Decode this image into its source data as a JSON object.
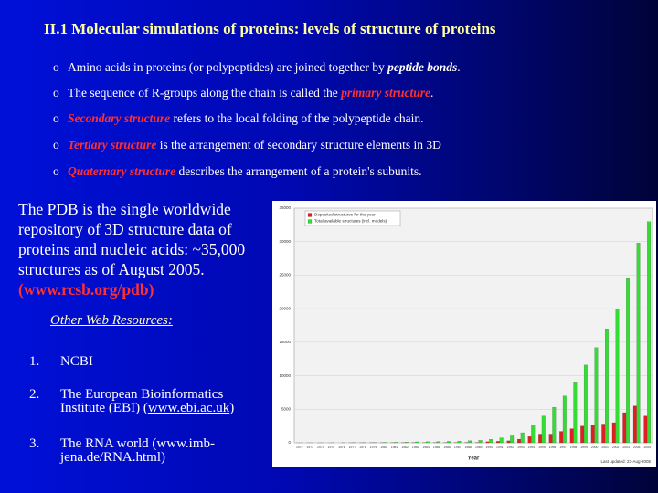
{
  "title": "II.1 Molecular simulations of proteins: levels of structure of proteins",
  "bullets": [
    [
      "Amino acids in proteins (or polypeptides) are joined together by ",
      "peptide bonds",
      "."
    ],
    [
      "The sequence of R-groups along the chain is called the ",
      "primary structure",
      "."
    ],
    [
      "Secondary structure",
      " refers to the local folding of the polypeptide chain."
    ],
    [
      "Tertiary structure",
      " is the arrangement of secondary structure elements in 3D"
    ],
    [
      "Quaternary structure",
      " describes the arrangement of a protein's subunits."
    ]
  ],
  "bullet_marker": "o",
  "pdb_text": [
    "The PDB is the single worldwide repository of 3D structure data of proteins and nucleic acids: ~35,000 structures as of August 2005.",
    "(www.rcsb.org/pdb)"
  ],
  "resources": {
    "heading": "Other Web Resources:",
    "items": [
      {
        "number": "1.",
        "text": [
          "NCBI"
        ]
      },
      {
        "number": "2.",
        "text": [
          "The European Bioinformatics Institute (EBI) (",
          "www.ebi.ac.uk",
          ")"
        ]
      },
      {
        "number": "3.",
        "text": [
          "The RNA world (www.imb-jena.de/RNA.html)"
        ]
      }
    ]
  },
  "chart_data": {
    "type": "bar",
    "categories": [
      "1972",
      "1973",
      "1974",
      "1975",
      "1976",
      "1977",
      "1978",
      "1979",
      "1980",
      "1981",
      "1982",
      "1983",
      "1984",
      "1985",
      "1986",
      "1987",
      "1988",
      "1989",
      "1990",
      "1991",
      "1992",
      "1993",
      "1994",
      "1995",
      "1996",
      "1997",
      "1998",
      "1999",
      "2000",
      "2001",
      "2002",
      "2003",
      "2004",
      "2005"
    ],
    "series": [
      {
        "name": "Deposited structures for the year",
        "color": "#e02020",
        "values": [
          1,
          2,
          3,
          1,
          0,
          10,
          12,
          15,
          19,
          15,
          22,
          34,
          25,
          26,
          20,
          35,
          58,
          55,
          158,
          223,
          290,
          540,
          930,
          1300,
          1300,
          1700,
          2100,
          2500,
          2600,
          2800,
          3000,
          4500,
          5500,
          4000
        ]
      },
      {
        "name": "Total available structures (incl. models)",
        "color": "#33dd33",
        "values": [
          7,
          9,
          12,
          13,
          13,
          23,
          35,
          50,
          69,
          84,
          106,
          140,
          165,
          191,
          211,
          246,
          304,
          359,
          517,
          740,
          1030,
          1500,
          2600,
          4000,
          5300,
          7000,
          9100,
          11600,
          14200,
          17000,
          20000,
          24500,
          29800,
          33000
        ]
      }
    ],
    "xlabel": "Year",
    "note": "Last updated: 23-Aug-2005",
    "ylim": [
      0,
      35000
    ],
    "yticks": [
      0,
      5000,
      10000,
      15000,
      20000,
      25000,
      30000,
      35000
    ],
    "grid": true
  }
}
